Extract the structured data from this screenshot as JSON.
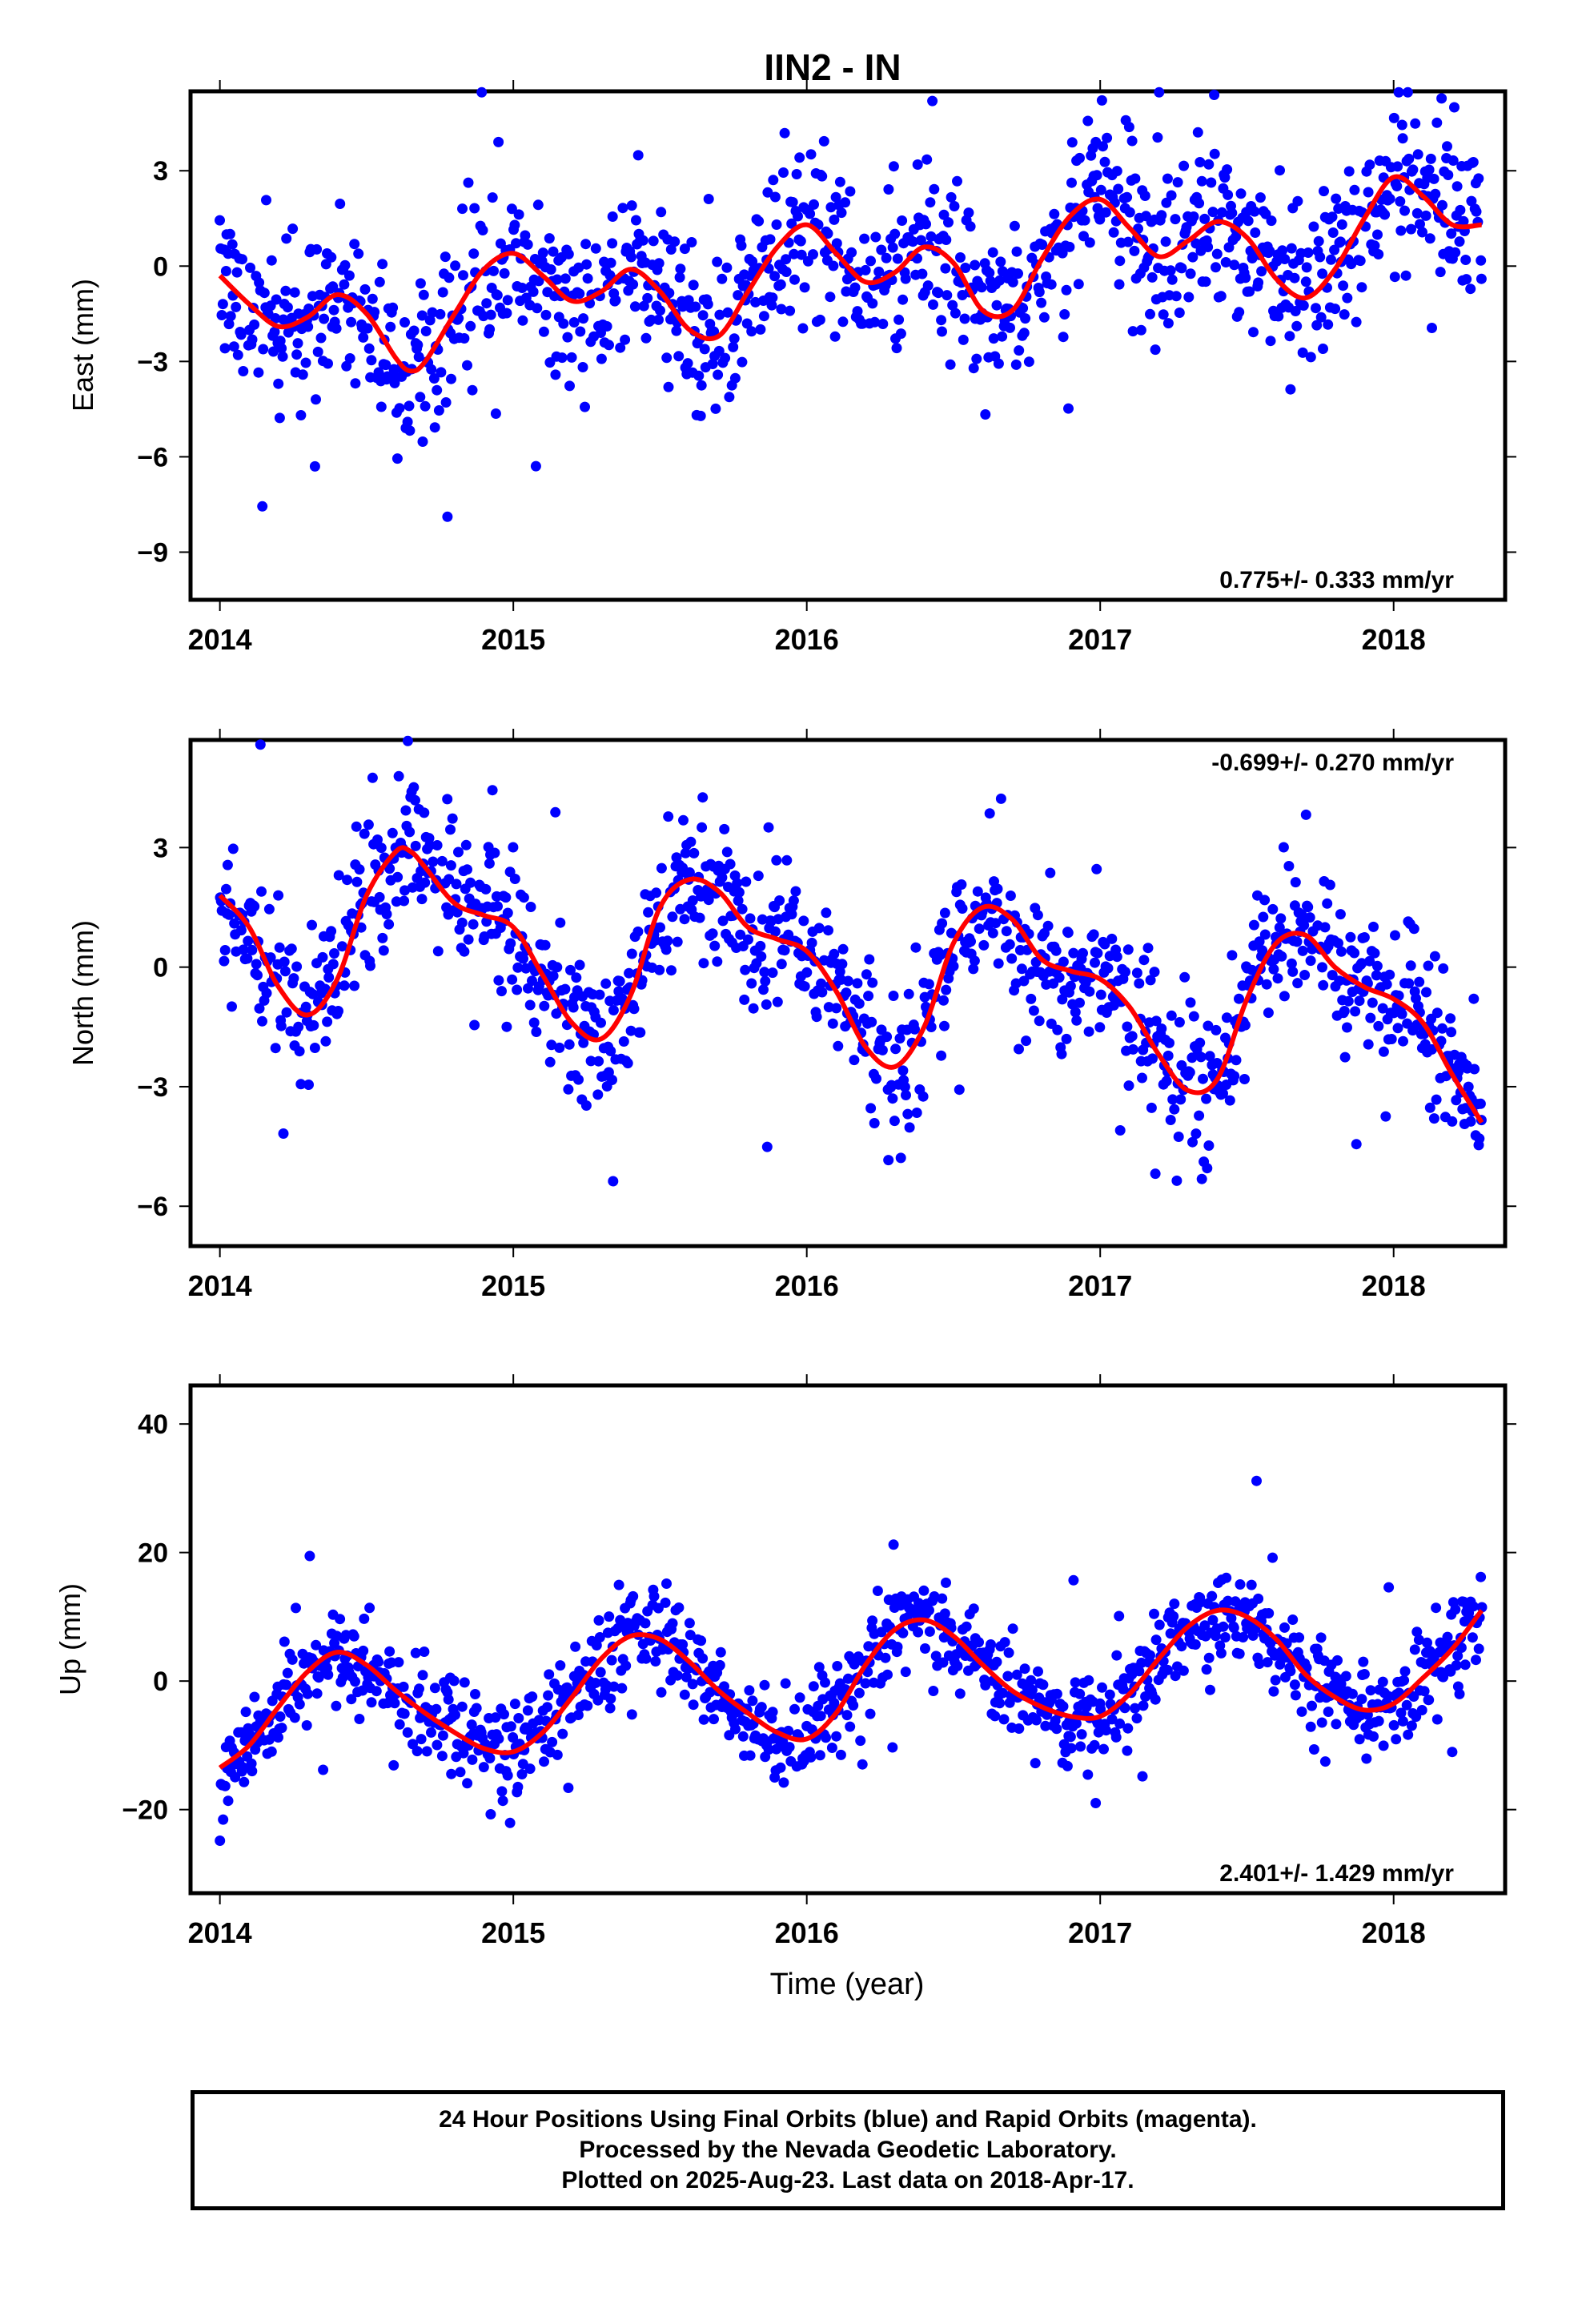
{
  "title": "IIN2 - IN",
  "xlabel": "Time (year)",
  "footer": {
    "line1": "24 Hour Positions Using Final Orbits (blue) and Rapid Orbits (magenta).",
    "line2": "Processed by the Nevada Geodetic Laboratory.",
    "line3": "Plotted on 2025-Aug-23. Last data on 2018-Apr-17."
  },
  "colors": {
    "points": "#0000ff",
    "fit": "#ff0000",
    "frame": "#000000"
  },
  "chart_data": [
    {
      "type": "scatter",
      "component": "east",
      "ylabel": "East (mm)",
      "rate_label": "0.775+/- 0.333 mm/yr",
      "rate_placement": "bottom-right",
      "xlim": [
        2013.9,
        2018.38
      ],
      "ylim": [
        -10.5,
        5.5
      ],
      "xticks": [
        2014,
        2015,
        2016,
        2017,
        2018
      ],
      "xtick_labels": [
        "2014",
        "2015",
        "2016",
        "2017",
        "2018"
      ],
      "yticks": [
        -9,
        -6,
        -3,
        0,
        3
      ],
      "ytick_labels": [
        "−9",
        "−6",
        "−3",
        "0",
        "3"
      ],
      "grid": false,
      "fit": {
        "name": "fit",
        "x": [
          2014.0,
          2014.1,
          2014.2,
          2014.3,
          2014.4,
          2014.5,
          2014.6,
          2014.65,
          2014.7,
          2014.8,
          2014.9,
          2015.0,
          2015.1,
          2015.2,
          2015.3,
          2015.4,
          2015.5,
          2015.6,
          2015.7,
          2015.8,
          2015.9,
          2016.0,
          2016.1,
          2016.2,
          2016.3,
          2016.4,
          2016.5,
          2016.6,
          2016.7,
          2016.8,
          2016.9,
          2017.0,
          2017.1,
          2017.2,
          2017.3,
          2017.4,
          2017.5,
          2017.6,
          2017.7,
          2017.8,
          2017.9,
          2018.0,
          2018.1,
          2018.2,
          2018.3
        ],
        "y": [
          -0.3,
          -1.2,
          -1.9,
          -1.6,
          -0.9,
          -1.5,
          -2.9,
          -3.3,
          -3.0,
          -1.5,
          -0.1,
          0.4,
          -0.3,
          -1.1,
          -0.8,
          -0.1,
          -0.8,
          -2.0,
          -2.2,
          -0.8,
          0.6,
          1.3,
          0.4,
          -0.5,
          -0.2,
          0.6,
          0.1,
          -1.4,
          -1.4,
          0.2,
          1.6,
          2.1,
          1.2,
          0.3,
          0.8,
          1.4,
          0.9,
          -0.4,
          -1.0,
          -0.1,
          1.5,
          2.8,
          2.2,
          1.3,
          1.3
        ]
      }
    },
    {
      "type": "scatter",
      "component": "north",
      "ylabel": "North (mm)",
      "rate_label": "-0.699+/- 0.270 mm/yr",
      "rate_placement": "top-right",
      "xlim": [
        2013.9,
        2018.38
      ],
      "ylim": [
        -7.0,
        5.7
      ],
      "xticks": [
        2014,
        2015,
        2016,
        2017,
        2018
      ],
      "xtick_labels": [
        "2014",
        "2015",
        "2016",
        "2017",
        "2018"
      ],
      "yticks": [
        -6,
        -3,
        0,
        3
      ],
      "ytick_labels": [
        "−6",
        "−3",
        "0",
        "3"
      ],
      "grid": false,
      "fit": {
        "name": "fit",
        "x": [
          2014.0,
          2014.1,
          2014.2,
          2014.3,
          2014.4,
          2014.5,
          2014.6,
          2014.65,
          2014.7,
          2014.8,
          2014.9,
          2015.0,
          2015.1,
          2015.2,
          2015.3,
          2015.4,
          2015.5,
          2015.6,
          2015.7,
          2015.8,
          2015.9,
          2016.0,
          2016.1,
          2016.2,
          2016.3,
          2016.4,
          2016.5,
          2016.6,
          2016.7,
          2016.8,
          2016.9,
          2017.0,
          2017.1,
          2017.2,
          2017.3,
          2017.4,
          2017.5,
          2017.6,
          2017.7,
          2017.8,
          2017.9,
          2018.0,
          2018.1,
          2018.2,
          2018.3
        ],
        "y": [
          1.8,
          1.0,
          -0.5,
          -1.2,
          -0.3,
          1.8,
          2.9,
          2.9,
          2.5,
          1.6,
          1.3,
          1.0,
          -0.2,
          -1.4,
          -1.8,
          -0.7,
          1.5,
          2.2,
          1.9,
          1.0,
          0.7,
          0.4,
          -0.6,
          -2.0,
          -2.5,
          -1.5,
          0.6,
          1.5,
          1.2,
          0.2,
          -0.1,
          -0.3,
          -1.0,
          -2.2,
          -3.1,
          -2.8,
          -0.8,
          0.6,
          0.8,
          0.0,
          -0.5,
          -0.8,
          -1.4,
          -2.7,
          -3.9
        ]
      }
    },
    {
      "type": "scatter",
      "component": "up",
      "ylabel": "Up (mm)",
      "rate_label": "2.401+/- 1.429 mm/yr",
      "rate_placement": "bottom-right",
      "xlim": [
        2013.9,
        2018.38
      ],
      "ylim": [
        -33,
        46
      ],
      "xticks": [
        2014,
        2015,
        2016,
        2017,
        2018
      ],
      "xtick_labels": [
        "2014",
        "2015",
        "2016",
        "2017",
        "2018"
      ],
      "yticks": [
        -20,
        0,
        20,
        40
      ],
      "ytick_labels": [
        "−20",
        "0",
        "20",
        "40"
      ],
      "grid": false,
      "fit": {
        "name": "fit",
        "x": [
          2014.0,
          2014.1,
          2014.2,
          2014.3,
          2014.4,
          2014.5,
          2014.6,
          2014.7,
          2014.8,
          2014.9,
          2015.0,
          2015.1,
          2015.2,
          2015.3,
          2015.4,
          2015.5,
          2015.6,
          2015.7,
          2015.8,
          2015.9,
          2016.0,
          2016.1,
          2016.2,
          2016.3,
          2016.4,
          2016.5,
          2016.6,
          2016.7,
          2016.8,
          2016.9,
          2017.0,
          2017.1,
          2017.2,
          2017.3,
          2017.4,
          2017.5,
          2017.6,
          2017.7,
          2017.8,
          2017.9,
          2018.0,
          2018.1,
          2018.2,
          2018.3
        ],
        "y": [
          -13.5,
          -10.0,
          -4.0,
          1.5,
          4.5,
          2.5,
          -1.5,
          -5.0,
          -8.0,
          -10.5,
          -11.0,
          -8.0,
          -2.5,
          3.5,
          7.0,
          6.5,
          3.0,
          -1.5,
          -5.0,
          -8.0,
          -9.0,
          -5.0,
          2.5,
          8.0,
          9.5,
          7.0,
          2.5,
          -1.5,
          -4.0,
          -5.5,
          -5.5,
          -2.0,
          3.5,
          8.5,
          11.0,
          10.0,
          6.5,
          1.0,
          -2.5,
          -4.5,
          -3.5,
          0.5,
          5.0,
          11.0
        ]
      }
    }
  ]
}
